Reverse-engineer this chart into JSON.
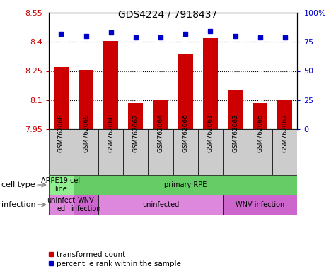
{
  "title": "GDS4224 / 7918437",
  "samples": [
    "GSM762068",
    "GSM762069",
    "GSM762060",
    "GSM762062",
    "GSM762064",
    "GSM762066",
    "GSM762061",
    "GSM762063",
    "GSM762065",
    "GSM762067"
  ],
  "transformed_count": [
    8.27,
    8.255,
    8.405,
    8.085,
    8.1,
    8.335,
    8.42,
    8.155,
    8.085,
    8.1
  ],
  "percentile_rank": [
    82,
    80,
    83,
    79,
    79,
    82,
    84,
    80,
    79,
    79
  ],
  "ylim_left": [
    7.95,
    8.55
  ],
  "ylim_right": [
    0,
    100
  ],
  "yticks_left": [
    7.95,
    8.1,
    8.25,
    8.4,
    8.55
  ],
  "yticks_right": [
    0,
    25,
    50,
    75,
    100
  ],
  "ytick_labels_left": [
    "7.95",
    "8.1",
    "8.25",
    "8.4",
    "8.55"
  ],
  "ytick_labels_right": [
    "0",
    "25",
    "50",
    "75",
    "100%"
  ],
  "hlines": [
    8.1,
    8.25,
    8.4
  ],
  "bar_color": "#cc0000",
  "dot_color": "#0000cc",
  "cell_type_labels": [
    {
      "text": "ARPE19 cell\nline",
      "xstart": 0,
      "xend": 1,
      "color": "#90ee90"
    },
    {
      "text": "primary RPE",
      "xstart": 1,
      "xend": 10,
      "color": "#66cc66"
    }
  ],
  "infection_labels": [
    {
      "text": "uninfect\ned",
      "xstart": 0,
      "xend": 1,
      "color": "#dd88dd"
    },
    {
      "text": "WNV\ninfection",
      "xstart": 1,
      "xend": 2,
      "color": "#cc66cc"
    },
    {
      "text": "uninfected",
      "xstart": 2,
      "xend": 7,
      "color": "#dd88dd"
    },
    {
      "text": "WNV infection",
      "xstart": 7,
      "xend": 10,
      "color": "#cc66cc"
    }
  ],
  "legend_red_label": "transformed count",
  "legend_blue_label": "percentile rank within the sample",
  "left_tick_color": "#cc0000",
  "right_tick_color": "#0000cc",
  "row_label_cell_type": "cell type",
  "row_label_infection": "infection",
  "tick_box_color": "#cccccc",
  "bar_width": 0.6
}
